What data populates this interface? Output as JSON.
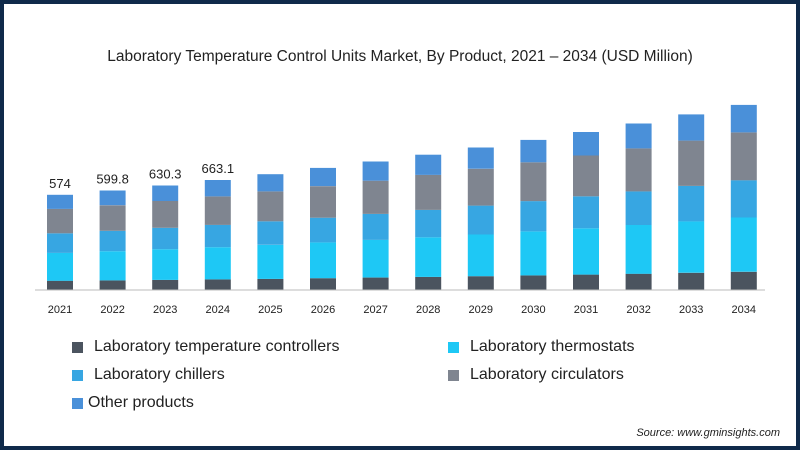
{
  "chart_data": {
    "type": "bar",
    "stacked": true,
    "title": "Laboratory Temperature Control Units Market, By Product, 2021 – 2034 (USD Million)",
    "categories": [
      "2021",
      "2022",
      "2023",
      "2024",
      "2025",
      "2026",
      "2027",
      "2028",
      "2029",
      "2030",
      "2031",
      "2032",
      "2033",
      "2034"
    ],
    "series": [
      {
        "name": "Laboratory temperature controllers",
        "color": "#4b545f",
        "values": [
          56,
          58,
          61,
          64,
          67,
          71,
          75,
          79,
          83,
          88,
          93,
          98,
          104,
          110
        ]
      },
      {
        "name": "Laboratory thermostats",
        "color": "#1ec8f5",
        "values": [
          168,
          176,
          185,
          194,
          205,
          216,
          227,
          239,
          252,
          265,
          279,
          294,
          310,
          327
        ]
      },
      {
        "name": "Laboratory chillers",
        "color": "#37a6e2",
        "values": [
          118,
          123,
          129,
          135,
          142,
          149,
          157,
          165,
          174,
          183,
          193,
          203,
          214,
          225
        ]
      },
      {
        "name": "Laboratory circulators",
        "color": "#7f8590",
        "values": [
          147,
          154,
          162,
          171,
          180,
          190,
          200,
          211,
          222,
          234,
          246,
          259,
          273,
          288
        ]
      },
      {
        "name": "Other products",
        "color": "#4a90d9",
        "values": [
          85,
          88.8,
          93.3,
          99.1,
          104,
          110,
          116,
          122,
          128,
          135,
          142,
          150,
          158,
          166
        ]
      }
    ],
    "totals": [
      574,
      599.8,
      630.3,
      663.1,
      698,
      736,
      775,
      816,
      859,
      905,
      953,
      1004,
      1059,
      1116
    ],
    "data_labels": [
      "574",
      "599.8",
      "630.3",
      "663.1"
    ],
    "ylim": [
      0,
      1200
    ],
    "xlabel": "",
    "ylabel": "",
    "grid": false,
    "legend_position": "bottom"
  },
  "source": "Source: www.gminsights.com"
}
